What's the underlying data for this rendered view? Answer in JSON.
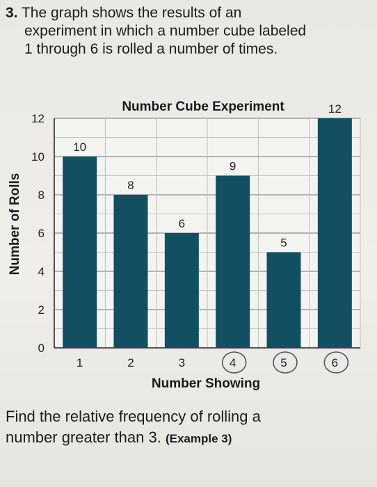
{
  "question": {
    "number": "3.",
    "line1": "The graph shows the results of an",
    "line2": "experiment in which a number cube labeled",
    "line3": "1 through 6 is rolled a number of times."
  },
  "prompt": {
    "text": "Find the relative frequency of rolling a",
    "text2": "number greater than 3.",
    "ref": "(Example 3)"
  },
  "chart_data": {
    "type": "bar",
    "title": "Number Cube Experiment",
    "xlabel": "Number Showing",
    "ylabel": "Number of Rolls",
    "categories": [
      "1",
      "2",
      "3",
      "4",
      "5",
      "6"
    ],
    "values": [
      10,
      8,
      6,
      9,
      5,
      12
    ],
    "data_labels": [
      "10",
      "8",
      "6",
      "9",
      "5",
      "12"
    ],
    "ylim": [
      0,
      12
    ],
    "yticks": [
      0,
      2,
      4,
      6,
      8,
      10,
      12
    ],
    "ytick_labels": [
      "0",
      "2",
      "4",
      "6",
      "8",
      "10",
      "12"
    ],
    "minor_grid_step": 1,
    "grid": true,
    "bar_color": "#134f63",
    "circled_categories": [
      "4",
      "5",
      "6"
    ]
  }
}
